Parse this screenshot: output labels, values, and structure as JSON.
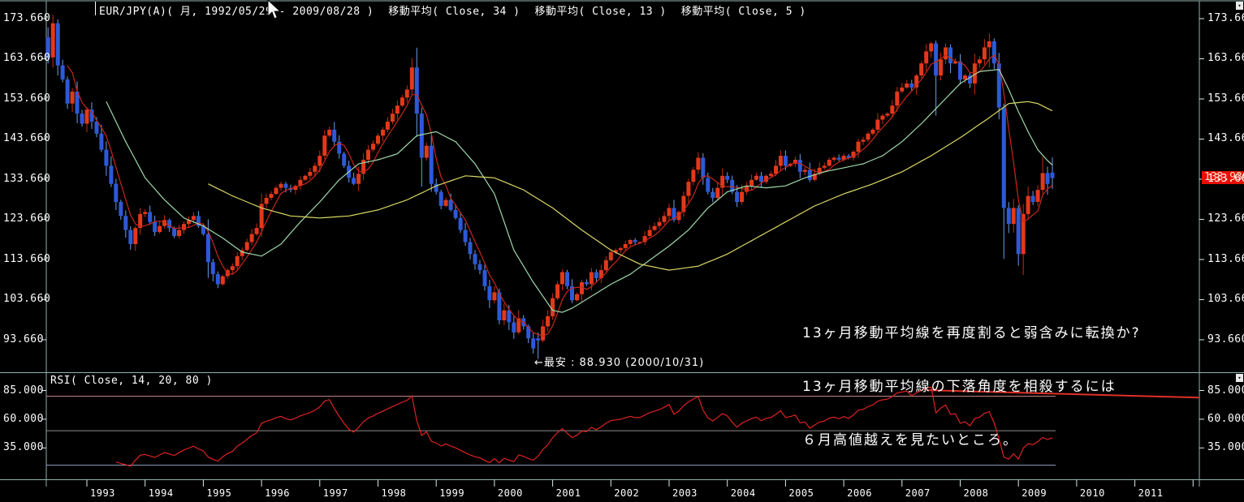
{
  "header": {
    "title": "EUR/JPY(A)( 月, 1992/05/29 - 2009/08/28 )",
    "ma_labels": [
      "移動平均( Close, 34 )",
      "移動平均( Close, 13 )",
      "移動平均( Close, 5 )"
    ]
  },
  "price_axis": {
    "ticks": [
      {
        "label": "173.660",
        "value": 173.66
      },
      {
        "label": "163.660",
        "value": 163.66
      },
      {
        "label": "153.660",
        "value": 153.66
      },
      {
        "label": "143.660",
        "value": 143.66
      },
      {
        "label": "133.660",
        "value": 133.66
      },
      {
        "label": "123.660",
        "value": 123.66
      },
      {
        "label": "113.660",
        "value": 113.66
      },
      {
        "label": "103.660",
        "value": 103.66
      },
      {
        "label": "93.660",
        "value": 93.66
      }
    ],
    "current_price_label": "133.939"
  },
  "x_axis": {
    "years": [
      "1993",
      "1994",
      "1995",
      "1996",
      "1997",
      "1998",
      "1999",
      "2000",
      "2001",
      "2002",
      "2003",
      "2004",
      "2005",
      "2006",
      "2007",
      "2008",
      "2009",
      "2010",
      "2011"
    ]
  },
  "rsi": {
    "title": "RSI( Close, 14, 20, 80 )",
    "ticks": [
      {
        "label": "85.000",
        "value": 85
      },
      {
        "label": "60.000",
        "value": 60
      },
      {
        "label": "35.000",
        "value": 35
      }
    ]
  },
  "annotations": {
    "note_lines": [
      "13ヶ月移動平均線を再度割ると弱含みに転換か?",
      "13ヶ月移動平均線の下落角度を相殺するには",
      "６月高値越えを見たいところ。"
    ],
    "low_label": "←最安 : 88.930 (2000/10/31)"
  },
  "chart_data": {
    "type": "candlestick",
    "instrument": "EUR/JPY(A)",
    "period": "monthly",
    "date_range": {
      "start": "1992/05/29",
      "end": "2009/08/28"
    },
    "ylim": [
      88,
      176
    ],
    "y_tick_values": [
      173.66,
      163.66,
      153.66,
      143.66,
      133.66,
      123.66,
      113.66,
      103.66,
      93.66
    ],
    "last_close": 133.939,
    "record_low": {
      "price": 88.93,
      "date": "2000/10/31"
    },
    "june_high_hint": 139.25,
    "start_month": "1992-05",
    "closes": [
      164,
      172.5,
      162,
      158.5,
      152.5,
      155.5,
      150,
      147.5,
      151,
      148,
      145,
      141,
      137,
      132.5,
      128,
      124.5,
      121,
      117.5,
      121.5,
      125,
      125.5,
      123,
      120.5,
      122,
      123.5,
      121.5,
      119.5,
      121,
      122.5,
      123.5,
      124.5,
      122,
      120,
      113,
      110,
      107.5,
      109.5,
      111,
      112,
      114.5,
      116,
      118,
      120,
      121.5,
      127.5,
      129,
      130,
      131.5,
      132.5,
      131.5,
      131,
      132,
      133.5,
      134.5,
      135.5,
      137,
      139.5,
      144.5,
      146,
      143,
      140,
      137,
      134,
      132.5,
      135,
      138.5,
      141,
      142.5,
      144.5,
      146,
      148,
      150,
      152,
      154,
      156,
      161.5,
      150,
      139,
      142,
      132.5,
      130.5,
      127,
      128.5,
      126,
      124,
      121,
      118,
      115,
      112.5,
      111,
      107,
      103.5,
      105.5,
      98.5,
      101,
      98,
      95.5,
      99,
      97,
      94,
      91.5,
      93.5,
      97,
      99.5,
      104,
      107.5,
      110.5,
      107,
      103.5,
      105,
      108,
      107.5,
      110.5,
      109,
      111,
      113.5,
      115.5,
      116,
      116.5,
      117.5,
      118.5,
      118,
      118,
      119.5,
      121,
      122,
      123,
      124.5,
      126.5,
      123.5,
      125.5,
      129.5,
      133,
      136,
      139,
      134,
      130.5,
      129,
      131.5,
      134.5,
      133.5,
      130.5,
      128,
      130.5,
      132,
      133.5,
      134.5,
      133,
      134.5,
      135,
      137,
      139.5,
      137,
      137.5,
      138.5,
      135.5,
      136,
      133.5,
      135,
      136.5,
      137,
      138.5,
      139,
      138.5,
      139.5,
      139,
      140.5,
      143,
      143.5,
      145,
      146,
      148.5,
      149.5,
      150,
      152,
      155.5,
      156.5,
      157.5,
      156.5,
      159.5,
      162.5,
      165.5,
      167.5,
      159.5,
      163.5,
      166.5,
      162.5,
      163,
      158.5,
      159.5,
      157.5,
      162.5,
      163.5,
      166.5,
      168,
      162.5,
      151.5,
      126.5,
      122.5,
      126.5,
      115,
      125,
      129.5,
      128,
      131,
      135.2,
      132.5,
      133.939
    ],
    "special_candles": {
      "0": [
        169,
        171.5,
        162.5,
        164
      ],
      "1": [
        164,
        174.6,
        161.5,
        172.5
      ],
      "2": [
        172.5,
        173.5,
        159.5,
        162
      ],
      "77": [
        150,
        151.5,
        131.8,
        139
      ],
      "101": [
        94,
        95.5,
        88.93,
        93.5
      ],
      "183": [
        167.5,
        168.2,
        149.5,
        159.5
      ],
      "194": [
        166.5,
        169.96,
        161.5,
        168
      ],
      "197": [
        151.5,
        152.5,
        113.8,
        126.5
      ],
      "200": [
        126.5,
        127.2,
        112.1,
        115
      ],
      "205": [
        131,
        139.25,
        130,
        135.2
      ],
      "206": [
        135.2,
        136.8,
        129.8,
        132.5
      ],
      "207": [
        135.3,
        139.1,
        131.2,
        133.939
      ]
    },
    "moving_averages": {
      "ma5": {
        "period": 5,
        "source": "close",
        "computed": true
      },
      "ma13_anchors": [
        [
          12,
          153
        ],
        [
          16,
          143
        ],
        [
          20,
          134
        ],
        [
          24,
          128.5
        ],
        [
          28,
          124
        ],
        [
          32,
          122
        ],
        [
          36,
          119
        ],
        [
          40,
          115.5
        ],
        [
          44,
          114.5
        ],
        [
          48,
          117.5
        ],
        [
          52,
          123
        ],
        [
          56,
          128
        ],
        [
          60,
          133.5
        ],
        [
          64,
          137.5
        ],
        [
          68,
          138.5
        ],
        [
          72,
          140
        ],
        [
          76,
          144.5
        ],
        [
          80,
          145.5
        ],
        [
          84,
          143
        ],
        [
          88,
          137.5
        ],
        [
          92,
          130
        ],
        [
          96,
          116
        ],
        [
          100,
          108
        ],
        [
          102,
          104.5
        ],
        [
          104,
          101
        ],
        [
          106,
          100.5
        ],
        [
          108,
          101.5
        ],
        [
          112,
          104.5
        ],
        [
          116,
          107.5
        ],
        [
          120,
          110
        ],
        [
          124,
          113.5
        ],
        [
          128,
          117
        ],
        [
          132,
          121
        ],
        [
          136,
          126.5
        ],
        [
          140,
          130.5
        ],
        [
          144,
          132
        ],
        [
          148,
          131.5
        ],
        [
          152,
          132
        ],
        [
          156,
          134
        ],
        [
          160,
          135.5
        ],
        [
          164,
          136.5
        ],
        [
          168,
          137.5
        ],
        [
          172,
          139.5
        ],
        [
          176,
          143
        ],
        [
          180,
          147.5
        ],
        [
          184,
          152.5
        ],
        [
          188,
          157.5
        ],
        [
          192,
          160.5
        ],
        [
          196,
          161
        ],
        [
          198,
          156
        ],
        [
          200,
          150.5
        ],
        [
          202,
          145.5
        ],
        [
          204,
          141
        ],
        [
          206,
          138.3
        ],
        [
          207,
          137.2
        ]
      ],
      "ma34_anchors": [
        [
          33,
          132.5
        ],
        [
          38,
          129.5
        ],
        [
          44,
          126.5
        ],
        [
          50,
          124.5
        ],
        [
          56,
          124
        ],
        [
          62,
          124.5
        ],
        [
          68,
          126
        ],
        [
          74,
          128.5
        ],
        [
          80,
          132
        ],
        [
          86,
          134.5
        ],
        [
          92,
          134
        ],
        [
          98,
          131
        ],
        [
          104,
          126.5
        ],
        [
          110,
          121
        ],
        [
          116,
          116
        ],
        [
          122,
          112.5
        ],
        [
          128,
          111
        ],
        [
          134,
          112
        ],
        [
          140,
          115
        ],
        [
          146,
          119
        ],
        [
          152,
          123
        ],
        [
          158,
          127
        ],
        [
          164,
          130
        ],
        [
          170,
          132.5
        ],
        [
          176,
          135.5
        ],
        [
          182,
          139.5
        ],
        [
          188,
          144
        ],
        [
          194,
          149
        ],
        [
          198,
          152.5
        ],
        [
          202,
          153
        ],
        [
          204,
          152.5
        ],
        [
          207,
          150.7
        ]
      ]
    },
    "rsi": {
      "period": 14,
      "bands": {
        "overbought": 80,
        "mid": 50,
        "oversold": 20
      },
      "axis_tick_values": [
        85,
        60,
        35
      ],
      "trendline": {
        "start_index": 181,
        "start_value": 85.3,
        "end_value": 78.8
      }
    },
    "colors": {
      "up_body": "#e2391b",
      "up_wick": "#c62c10",
      "down_body": "#2d59d8",
      "down_wick": "#6b9fe8",
      "ma5": "#c8281c",
      "ma13": "#9fd8ab",
      "ma34": "#d8d765",
      "rsi_line": "#dd2222",
      "rsi_trendline": "#e03028",
      "band_hi": "#c98d8d",
      "band_mid": "#8d8d8d",
      "band_lo": "#93a5c5",
      "frame": "#8fb2ae",
      "tick": "#d8e8e8",
      "price_label_bg": "#e90f00",
      "price_label_text": "#ffd9cc"
    }
  }
}
